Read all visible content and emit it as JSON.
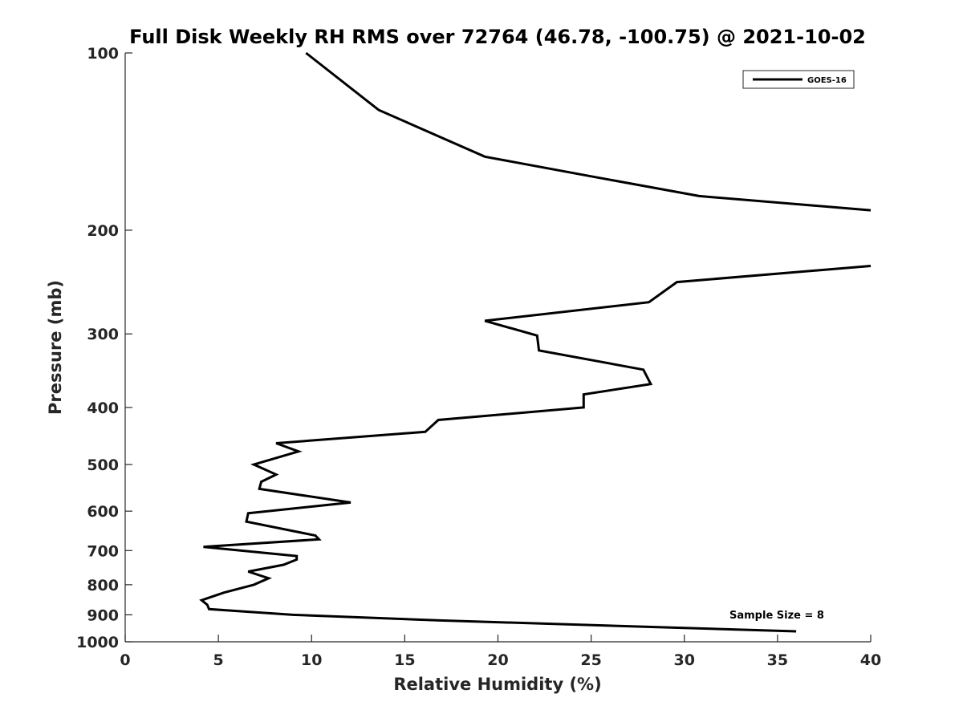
{
  "chart_data": {
    "type": "line",
    "title": "Full Disk Weekly RH RMS over 72764 (46.78, -100.75) @ 2021-10-02",
    "xlabel": "Relative Humidity (%)",
    "ylabel": "Pressure (mb)",
    "xlim": [
      0,
      40
    ],
    "ylim": [
      100,
      1000
    ],
    "y_scale": "log",
    "y_reversed": true,
    "grid": false,
    "legend_position": "top-right",
    "annotation": "Sample Size = 8",
    "x_ticks": [
      "0",
      "5",
      "10",
      "15",
      "20",
      "25",
      "30",
      "35",
      "40"
    ],
    "y_ticks": [
      "100",
      "200",
      "300",
      "400",
      "500",
      "600",
      "700",
      "800",
      "900",
      "1000"
    ],
    "series": [
      {
        "name": "GOES-16",
        "color": "#000000",
        "segments": [
          [
            {
              "x": 9.7,
              "p": 100
            },
            {
              "x": 13.6,
              "p": 125
            },
            {
              "x": 19.3,
              "p": 150
            },
            {
              "x": 25,
              "p": 162
            },
            {
              "x": 30.8,
              "p": 175
            },
            {
              "x": 40,
              "p": 185
            }
          ],
          [
            {
              "x": 40,
              "p": 230
            },
            {
              "x": 29.6,
              "p": 245
            },
            {
              "x": 28.1,
              "p": 265
            },
            {
              "x": 19.3,
              "p": 285
            },
            {
              "x": 22.1,
              "p": 302
            },
            {
              "x": 22.2,
              "p": 320
            },
            {
              "x": 27.8,
              "p": 345
            },
            {
              "x": 28.2,
              "p": 365
            },
            {
              "x": 24.6,
              "p": 380
            },
            {
              "x": 24.6,
              "p": 400
            },
            {
              "x": 16.8,
              "p": 420
            },
            {
              "x": 16.1,
              "p": 440
            },
            {
              "x": 8.1,
              "p": 460
            },
            {
              "x": 9.3,
              "p": 475
            },
            {
              "x": 6.9,
              "p": 500
            },
            {
              "x": 8.1,
              "p": 520
            },
            {
              "x": 7.3,
              "p": 535
            },
            {
              "x": 7.2,
              "p": 550
            },
            {
              "x": 12.1,
              "p": 580
            },
            {
              "x": 6.6,
              "p": 605
            },
            {
              "x": 6.5,
              "p": 625
            },
            {
              "x": 10.2,
              "p": 660
            },
            {
              "x": 10.4,
              "p": 670
            },
            {
              "x": 4.2,
              "p": 690
            },
            {
              "x": 9.2,
              "p": 715
            },
            {
              "x": 9.2,
              "p": 725
            },
            {
              "x": 8.5,
              "p": 740
            },
            {
              "x": 6.6,
              "p": 760
            },
            {
              "x": 7.7,
              "p": 780
            },
            {
              "x": 6.9,
              "p": 800
            },
            {
              "x": 5.3,
              "p": 825
            },
            {
              "x": 4.1,
              "p": 850
            },
            {
              "x": 4.4,
              "p": 865
            },
            {
              "x": 4.5,
              "p": 880
            },
            {
              "x": 9,
              "p": 900
            },
            {
              "x": 16.9,
              "p": 920
            },
            {
              "x": 36,
              "p": 960
            }
          ]
        ]
      }
    ]
  }
}
